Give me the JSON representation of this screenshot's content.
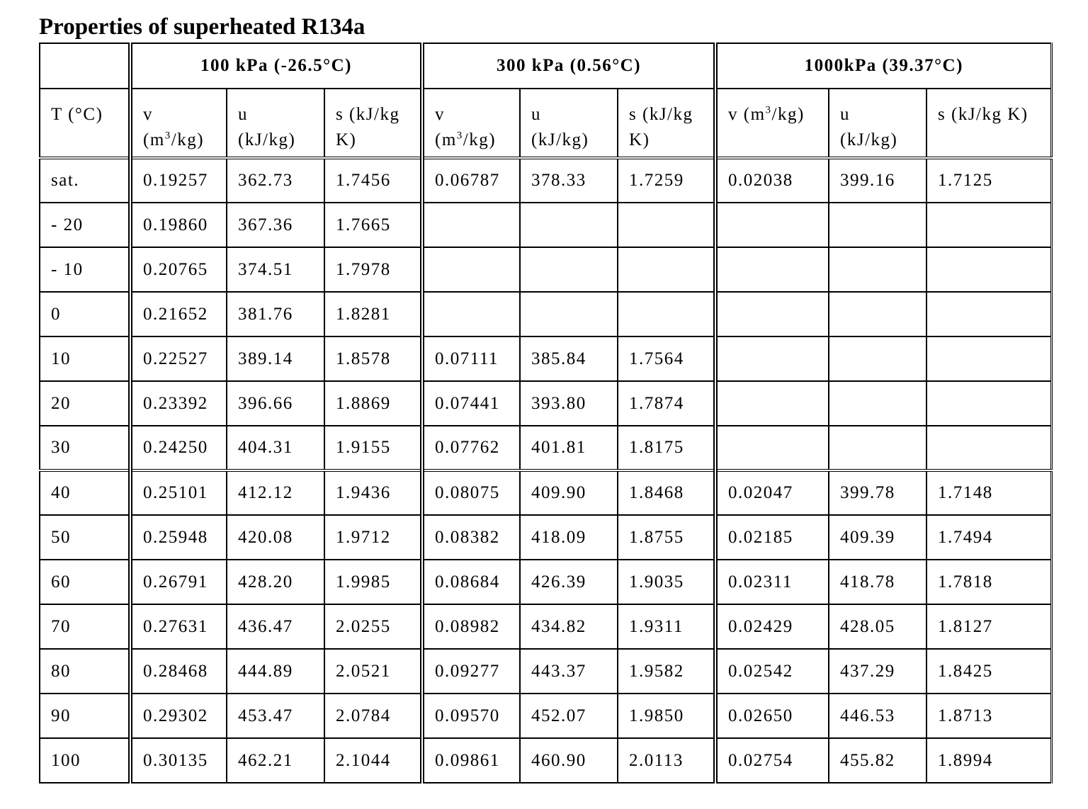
{
  "title": "Properties of superheated R134a",
  "table": {
    "corner": "",
    "groups": [
      {
        "label": "100 kPa (-26.5°C)"
      },
      {
        "label": "300 kPa (0.56°C)"
      },
      {
        "label": "1000kPa (39.37°C)"
      }
    ],
    "col_t": "T (°C)",
    "subheaders": [
      {
        "v": "v",
        "v_unit": "(m",
        "v_unit_end": "/kg)",
        "u": "u",
        "u_unit": "(kJ/kg)",
        "s": "s (kJ/kg",
        "s_unit": "K)"
      },
      {
        "v": "v",
        "v_unit": "(m",
        "v_unit_end": "/kg)",
        "u": "u",
        "u_unit": "(kJ/kg)",
        "s": "s (kJ/kg",
        "s_unit": "K)"
      },
      {
        "v": "v (m",
        "v_unit": "",
        "v_unit_end": "/kg)",
        "u": "u",
        "u_unit": "(kJ/kg)",
        "s": "s (kJ/kg K)",
        "s_unit": ""
      }
    ],
    "sup3": "3",
    "rows": [
      [
        "sat.",
        "0.19257",
        "362.73",
        "1.7456",
        "0.06787",
        "378.33",
        "1.7259",
        "0.02038",
        "399.16",
        "1.7125"
      ],
      [
        "- 20",
        "0.19860",
        "367.36",
        "1.7665",
        "",
        "",
        "",
        "",
        "",
        ""
      ],
      [
        "- 10",
        "0.20765",
        "374.51",
        "1.7978",
        "",
        "",
        "",
        "",
        "",
        ""
      ],
      [
        "0",
        "0.21652",
        "381.76",
        "1.8281",
        "",
        "",
        "",
        "",
        "",
        ""
      ],
      [
        "10",
        "0.22527",
        "389.14",
        "1.8578",
        "0.07111",
        "385.84",
        "1.7564",
        "",
        "",
        ""
      ],
      [
        "20",
        "0.23392",
        "396.66",
        "1.8869",
        "0.07441",
        "393.80",
        "1.7874",
        "",
        "",
        ""
      ],
      [
        "30",
        "0.24250",
        "404.31",
        "1.9155",
        "0.07762",
        "401.81",
        "1.8175",
        "",
        "",
        ""
      ],
      [
        "40",
        "0.25101",
        "412.12",
        "1.9436",
        "0.08075",
        "409.90",
        "1.8468",
        "0.02047",
        "399.78",
        "1.7148"
      ],
      [
        "50",
        "0.25948",
        "420.08",
        "1.9712",
        "0.08382",
        "418.09",
        "1.8755",
        "0.02185",
        "409.39",
        "1.7494"
      ],
      [
        "60",
        "0.26791",
        "428.20",
        "1.9985",
        "0.08684",
        "426.39",
        "1.9035",
        "0.02311",
        "418.78",
        "1.7818"
      ],
      [
        "70",
        "0.27631",
        "436.47",
        "2.0255",
        "0.08982",
        "434.82",
        "1.9311",
        "0.02429",
        "428.05",
        "1.8127"
      ],
      [
        "80",
        "0.28468",
        "444.89",
        "2.0521",
        "0.09277",
        "443.37",
        "1.9582",
        "0.02542",
        "437.29",
        "1.8425"
      ],
      [
        "90",
        "0.29302",
        "453.47",
        "2.0784",
        "0.09570",
        "452.07",
        "1.9850",
        "0.02650",
        "446.53",
        "1.8713"
      ],
      [
        "100",
        "0.30135",
        "462.21",
        "2.1044",
        "0.09861",
        "460.90",
        "2.0113",
        "0.02754",
        "455.82",
        "1.8994"
      ]
    ]
  }
}
